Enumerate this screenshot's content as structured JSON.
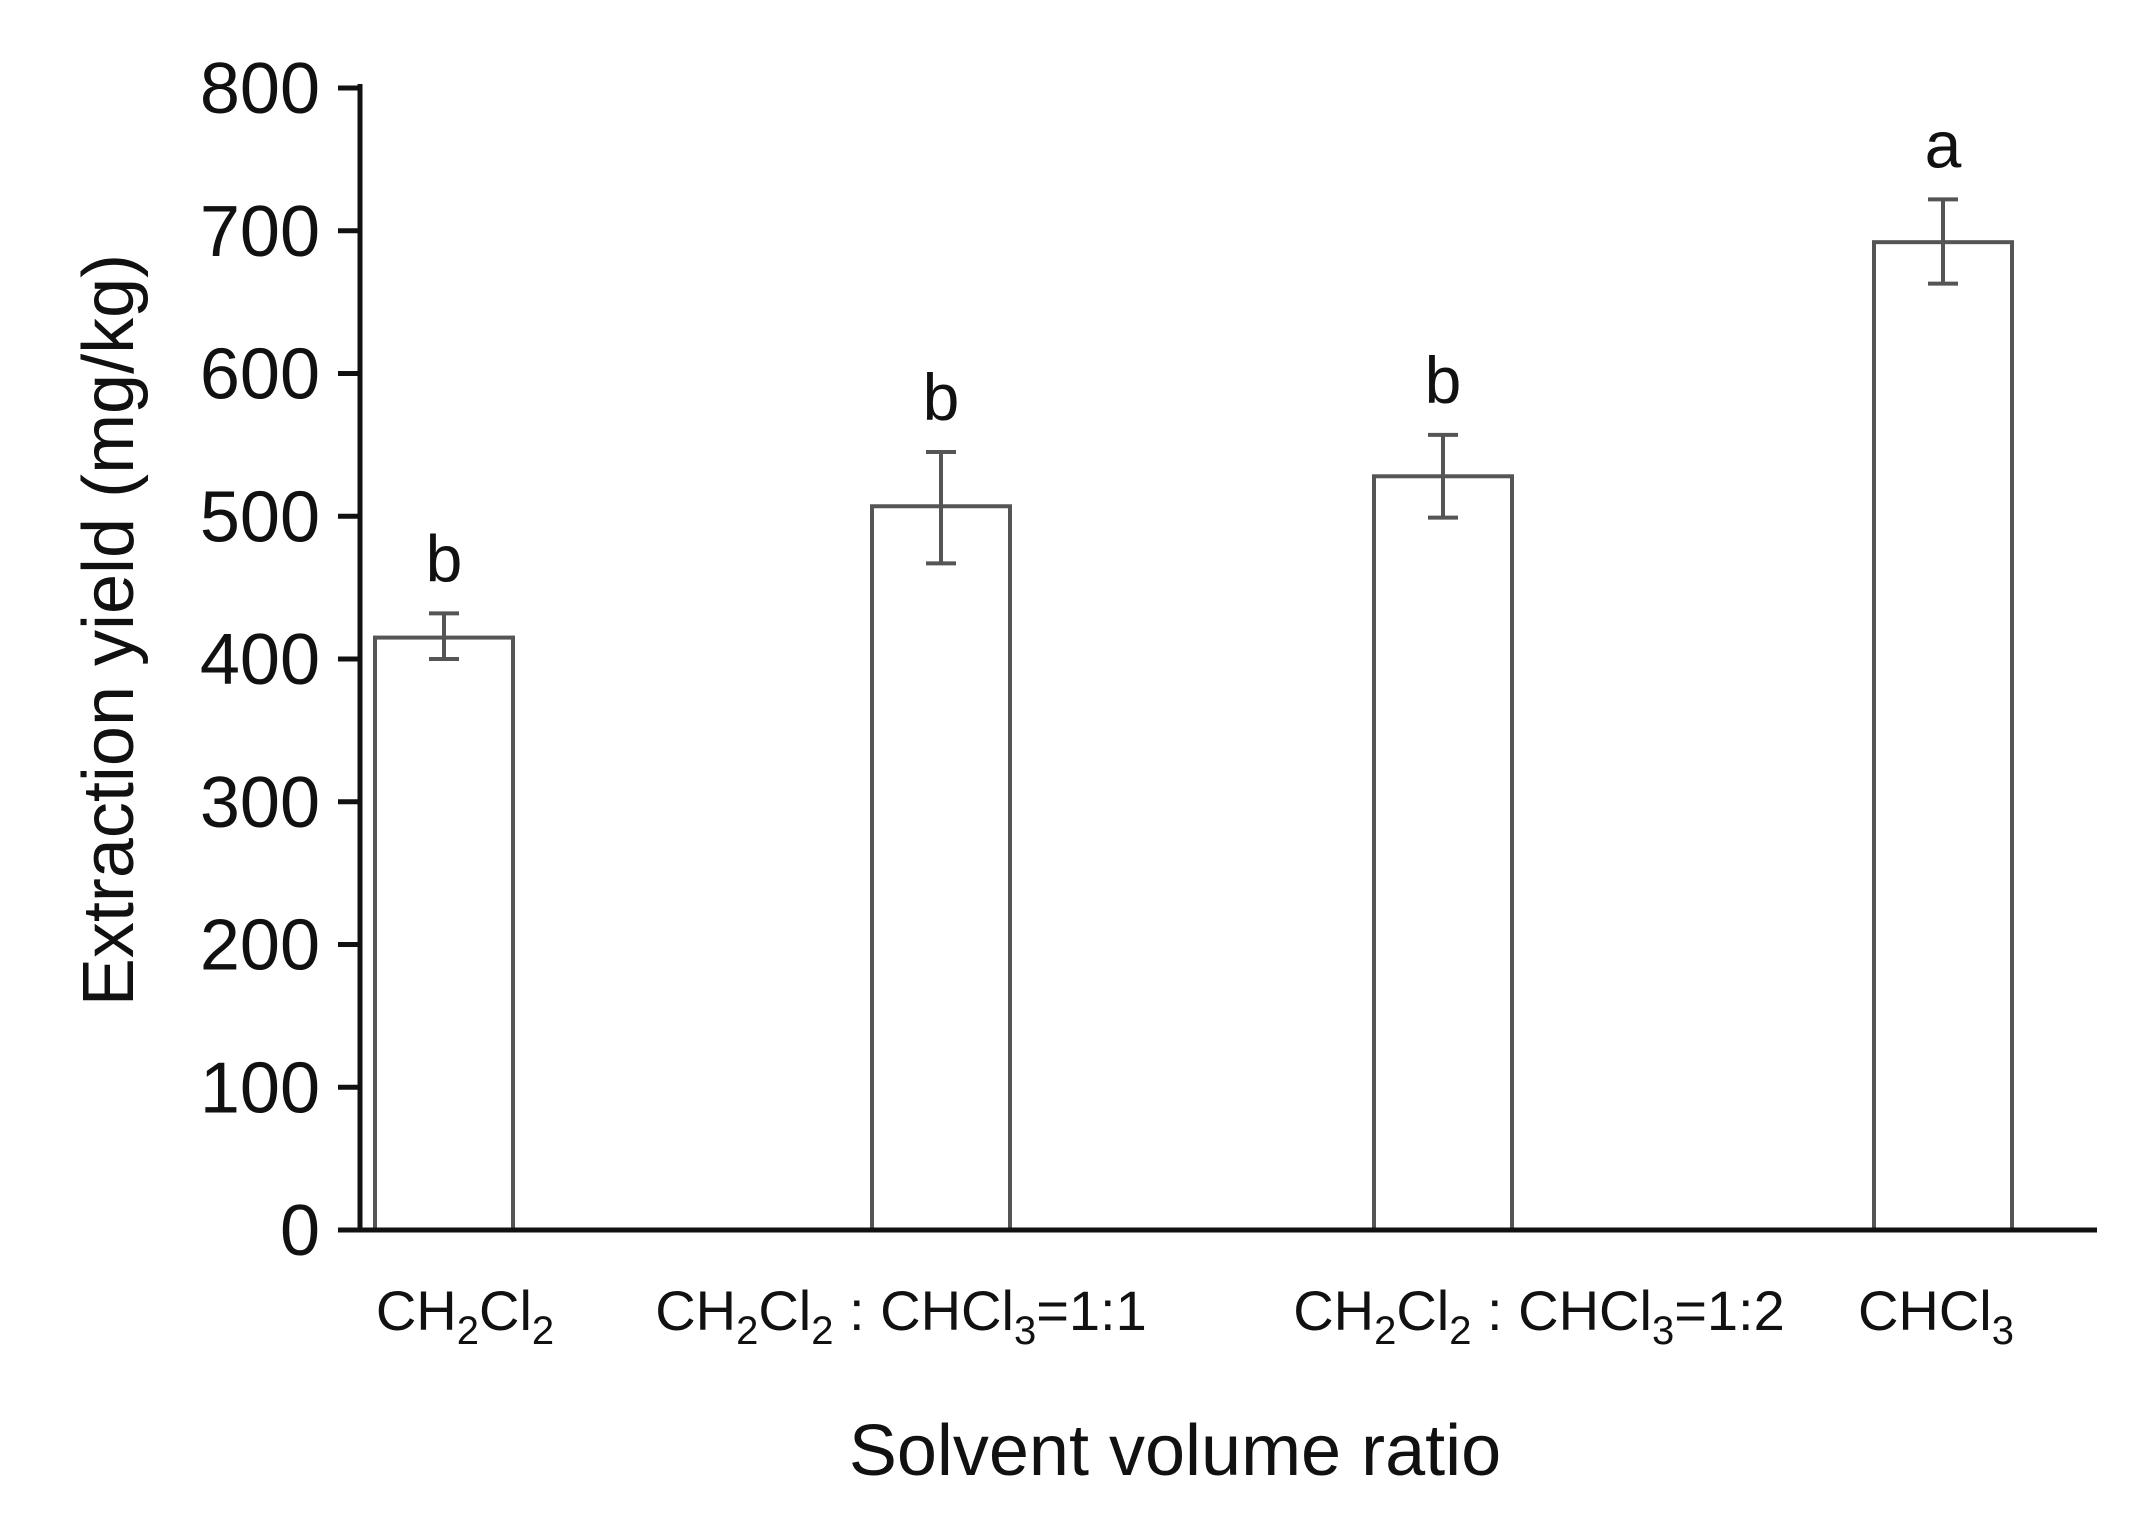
{
  "chart_data": {
    "type": "bar",
    "categories": [
      [
        {
          "t": "CH"
        },
        {
          "t": "2",
          "sub": true
        },
        {
          "t": "Cl"
        },
        {
          "t": "2",
          "sub": true
        }
      ],
      [
        {
          "t": "CH"
        },
        {
          "t": "2",
          "sub": true
        },
        {
          "t": "Cl"
        },
        {
          "t": "2",
          "sub": true
        },
        {
          "t": " : CHCl"
        },
        {
          "t": "3",
          "sub": true
        },
        {
          "t": "=1:1"
        }
      ],
      [
        {
          "t": "CH"
        },
        {
          "t": "2",
          "sub": true
        },
        {
          "t": "Cl"
        },
        {
          "t": "2",
          "sub": true
        },
        {
          "t": " : CHCl"
        },
        {
          "t": "3",
          "sub": true
        },
        {
          "t": "=1:2"
        }
      ],
      [
        {
          "t": "CHCl"
        },
        {
          "t": "3",
          "sub": true
        }
      ]
    ],
    "values": [
      415,
      507,
      528,
      692
    ],
    "error_low": [
      400,
      467,
      499,
      663
    ],
    "error_high": [
      432,
      545,
      557,
      722
    ],
    "significance": [
      "b",
      "b",
      "b",
      "a"
    ],
    "xlabel": "Solvent volume ratio",
    "ylabel": "Extraction yield (mg/kg)",
    "ylim": [
      0,
      800
    ],
    "yticks": [
      0,
      100,
      200,
      300,
      400,
      500,
      600,
      700,
      800
    ],
    "grid": false,
    "colors": {
      "bar_fill": "#ffffff",
      "bar_stroke": "#555555",
      "error_bar": "#555555",
      "axis": "#111111"
    }
  }
}
